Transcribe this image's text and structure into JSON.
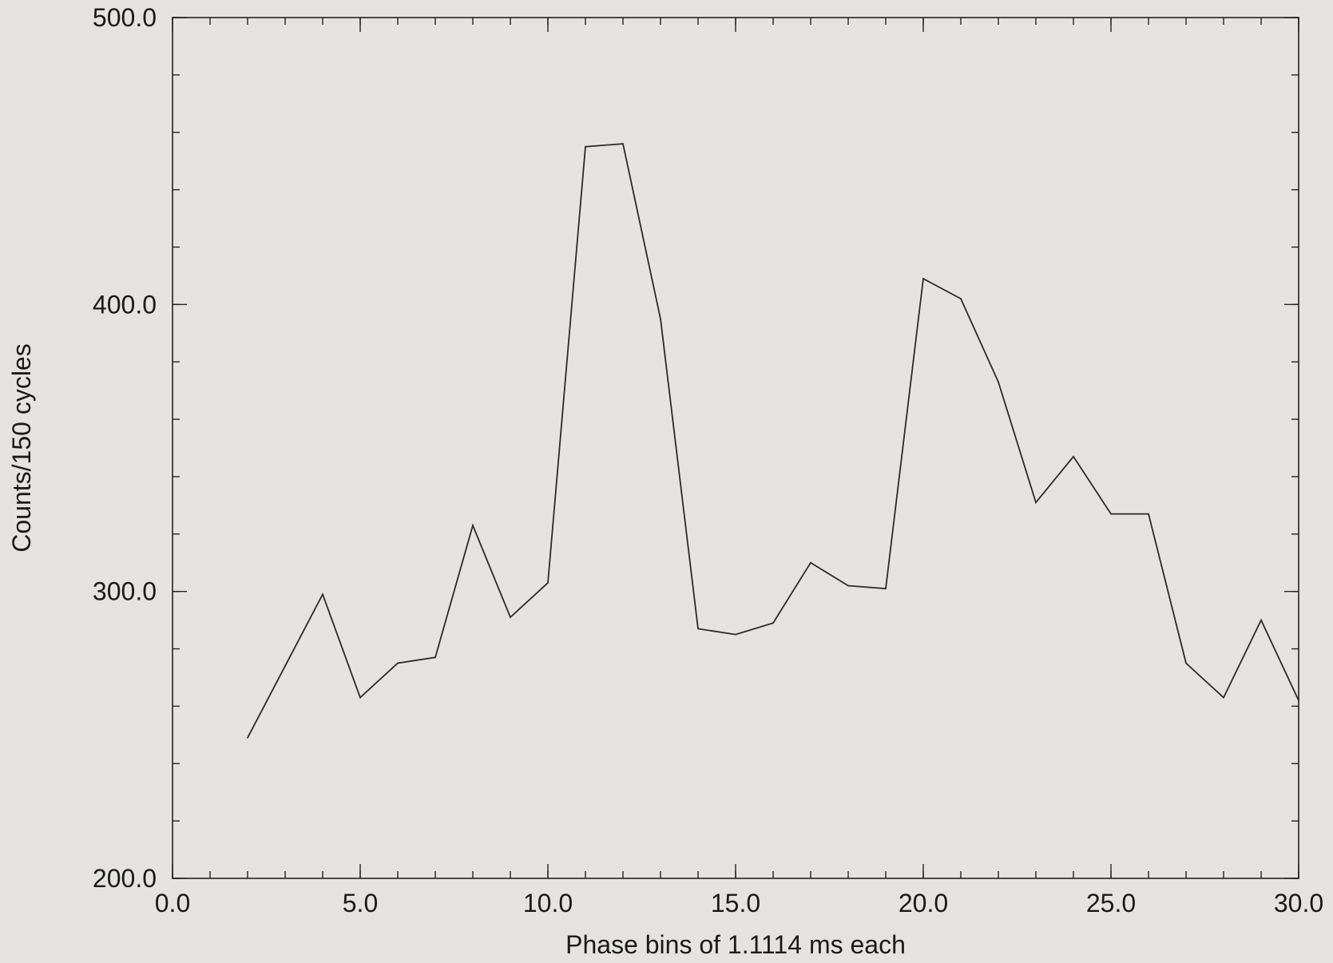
{
  "chart_data": {
    "type": "line",
    "title": "",
    "xlabel": "Phase bins of  1.1114 ms each",
    "ylabel": "Counts/150 cycles",
    "xlim": [
      0,
      30
    ],
    "ylim": [
      200,
      500
    ],
    "grid": false,
    "x_ticks": [
      0,
      5,
      10,
      15,
      20,
      25,
      30
    ],
    "x_tick_labels": [
      "0.0",
      "5.0",
      "10.0",
      "15.0",
      "20.0",
      "25.0",
      "30.0"
    ],
    "y_ticks": [
      200,
      300,
      400,
      500
    ],
    "y_tick_labels": [
      "200.0",
      "300.0",
      "400.0",
      "500.0"
    ],
    "x_minor_step": 1,
    "y_minor_step": 20,
    "series": [
      {
        "x": [
          2,
          3,
          4,
          5,
          6,
          7,
          8,
          9,
          10,
          11,
          12,
          13,
          14,
          15,
          16,
          17,
          18,
          19,
          20,
          21,
          22,
          23,
          24,
          25,
          26,
          27,
          28,
          29,
          30
        ],
        "values": [
          249,
          274,
          299,
          263,
          275,
          277,
          323,
          291,
          303,
          455,
          456,
          395,
          287,
          285,
          289,
          310,
          302,
          301,
          409,
          402,
          373,
          331,
          347,
          327,
          327,
          275,
          263,
          290,
          262
        ]
      }
    ]
  }
}
